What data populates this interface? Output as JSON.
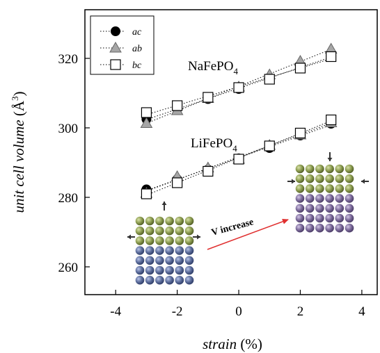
{
  "chart_data": {
    "type": "scatter",
    "xlabel": "strain",
    "xlabel_unit": "(%)",
    "ylabel": "unit cell volume",
    "ylabel_unit": "(Å",
    "ylabel_unit_sup": "3",
    "ylabel_unit_close": ")",
    "xlim": [
      -5,
      4.5
    ],
    "ylim": [
      252,
      334
    ],
    "xticks": [
      -4,
      -2,
      0,
      2,
      4
    ],
    "xtick_labels": [
      "-4",
      "-2",
      "0",
      "2",
      "4"
    ],
    "yticks": [
      260,
      280,
      300,
      320
    ],
    "ytick_labels": [
      "260",
      "280",
      "300",
      "320"
    ],
    "grid": false,
    "legend_position": "top-left",
    "legend": [
      {
        "name": "ac",
        "marker": "circle-filled"
      },
      {
        "name": "ab",
        "marker": "triangle-gray"
      },
      {
        "name": "bc",
        "marker": "square-open"
      }
    ],
    "compound_labels": [
      {
        "text": "NaFePO",
        "sub": "4"
      },
      {
        "text": "LiFePO",
        "sub": "4"
      }
    ],
    "groups": [
      {
        "compound": "NaFePO4",
        "series": [
          {
            "name": "ac",
            "x": [
              -3,
              -2,
              -1,
              0,
              1,
              2,
              3
            ],
            "y": [
              302.5,
              305.5,
              308.3,
              311.2,
              314.2,
              317.4,
              320.6
            ]
          },
          {
            "name": "ab",
            "x": [
              -3,
              -2,
              -1,
              0,
              1,
              2,
              3
            ],
            "y": [
              301.3,
              305.0,
              308.5,
              311.8,
              315.3,
              319.2,
              322.7
            ]
          },
          {
            "name": "bc",
            "x": [
              -3,
              -2,
              -1,
              0,
              1,
              2,
              3
            ],
            "y": [
              304.4,
              306.4,
              308.8,
              311.6,
              314.0,
              317.2,
              320.5
            ]
          }
        ]
      },
      {
        "compound": "LiFePO4",
        "series": [
          {
            "name": "ac",
            "x": [
              -3,
              -2,
              -1,
              0,
              1,
              2,
              3
            ],
            "y": [
              282.3,
              285.2,
              288.0,
              291.2,
              294.2,
              297.8,
              301.2
            ]
          },
          {
            "name": "ab",
            "x": [
              -3,
              -2,
              -1,
              0,
              1,
              2,
              3
            ],
            "y": [
              281.2,
              286.0,
              288.5,
              291.0,
              295.0,
              298.0,
              301.5
            ]
          },
          {
            "name": "bc",
            "x": [
              -3,
              -2,
              -1,
              0,
              1,
              2,
              3
            ],
            "y": [
              281.0,
              284.2,
              287.5,
              291.0,
              294.8,
              298.5,
              302.3
            ]
          }
        ]
      }
    ],
    "annotation": "V increase",
    "colors": {
      "ac_marker": "#000000",
      "ab_marker": "#a6a6a6",
      "bc_marker": "#ffffff",
      "arrow": "#e03030",
      "sphere_green": "#8a9a4e",
      "sphere_blue": "#5a6b9a",
      "sphere_purple": "#7a6898",
      "strain_arrow": "#333333"
    }
  }
}
